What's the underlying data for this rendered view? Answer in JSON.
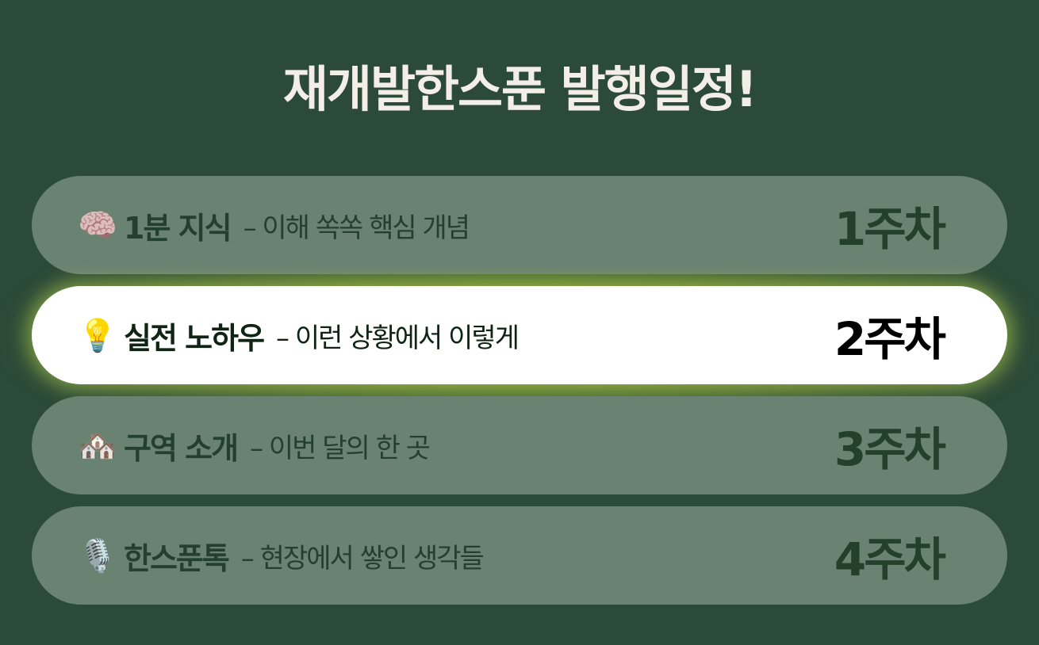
{
  "title": "재개발한스푼 발행일정!",
  "schedule": [
    {
      "icon": "🧠",
      "icon_name": "brain-icon",
      "name": "1분 지식",
      "desc": "– 이해 쏙쏙 핵심 개념",
      "week": "1주차",
      "active": false
    },
    {
      "icon": "💡",
      "icon_name": "lightbulb-icon",
      "name": "실전 노하우",
      "desc": "– 이런 상황에서 이렇게",
      "week": "2주차",
      "active": true
    },
    {
      "icon": "🏘️",
      "icon_name": "houses-icon",
      "name": "구역 소개",
      "desc": "– 이번 달의 한 곳",
      "week": "3주차",
      "active": false
    },
    {
      "icon": "🎙️",
      "icon_name": "microphone-icon",
      "name": "한스푼톡",
      "desc": "– 현장에서 쌓인 생각들",
      "week": "4주차",
      "active": false
    }
  ],
  "colors": {
    "background": "#2c4a38",
    "card": "#6a8272",
    "active_card": "#ffffff",
    "glow": "#a8c850"
  }
}
